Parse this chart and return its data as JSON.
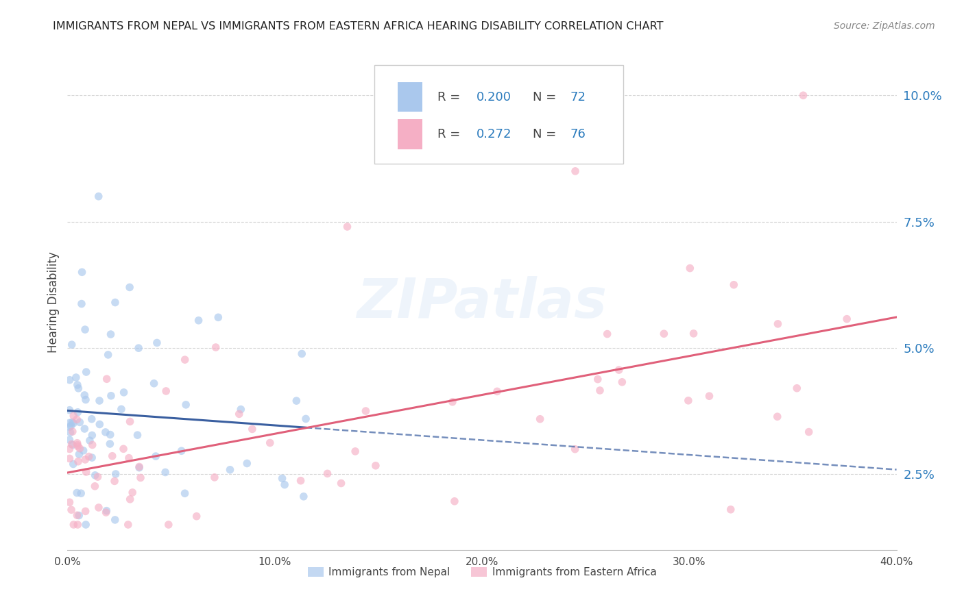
{
  "title": "IMMIGRANTS FROM NEPAL VS IMMIGRANTS FROM EASTERN AFRICA HEARING DISABILITY CORRELATION CHART",
  "source": "Source: ZipAtlas.com",
  "ylabel": "Hearing Disability",
  "ytick_labels": [
    "2.5%",
    "5.0%",
    "7.5%",
    "10.0%"
  ],
  "ytick_values": [
    0.025,
    0.05,
    0.075,
    0.1
  ],
  "xlim": [
    0.0,
    0.4
  ],
  "ylim": [
    0.01,
    0.108
  ],
  "nepal_R": 0.2,
  "nepal_N": 72,
  "eastern_africa_R": 0.272,
  "eastern_africa_N": 76,
  "nepal_color": "#aac8ed",
  "eastern_africa_color": "#f5afc5",
  "nepal_line_color": "#3a5fa0",
  "eastern_africa_line_color": "#e0607a",
  "nepal_label": "Immigrants from Nepal",
  "eastern_africa_label": "Immigrants from Eastern Africa",
  "legend_value_color": "#2b7bbd",
  "watermark": "ZIPatlas",
  "background_color": "#ffffff",
  "grid_color": "#cccccc",
  "xtick_labels": [
    "0.0%",
    "10.0%",
    "20.0%",
    "30.0%",
    "40.0%"
  ],
  "xtick_values": [
    0.0,
    0.1,
    0.2,
    0.3,
    0.4
  ]
}
